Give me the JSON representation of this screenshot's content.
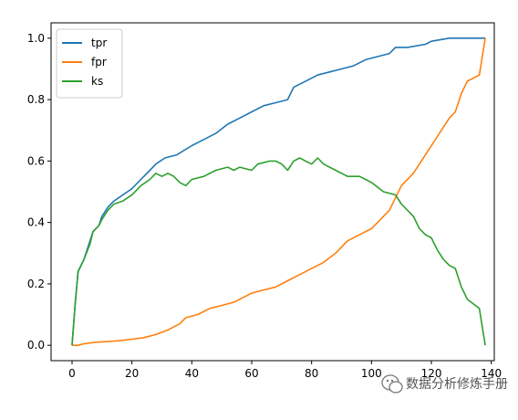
{
  "chart_data": {
    "type": "line",
    "title": "",
    "xlabel": "",
    "ylabel": "",
    "xlim": [
      -7,
      141
    ],
    "ylim": [
      -0.05,
      1.05
    ],
    "xticks": [
      0,
      20,
      40,
      60,
      80,
      100,
      120,
      140
    ],
    "yticks": [
      0.0,
      0.2,
      0.4,
      0.6,
      0.8,
      1.0
    ],
    "xtick_labels": [
      "0",
      "20",
      "40",
      "60",
      "80",
      "100",
      "120",
      "140"
    ],
    "ytick_labels": [
      "0.0",
      "0.2",
      "0.4",
      "0.6",
      "0.8",
      "1.0"
    ],
    "grid": false,
    "legend_position": "top-left",
    "series": [
      {
        "name": "tpr",
        "color": "#1f77b4",
        "points": [
          [
            0,
            0
          ],
          [
            1,
            0.13
          ],
          [
            2,
            0.24
          ],
          [
            4,
            0.28
          ],
          [
            6,
            0.34
          ],
          [
            7,
            0.37
          ],
          [
            9,
            0.39
          ],
          [
            10,
            0.42
          ],
          [
            12,
            0.45
          ],
          [
            14,
            0.47
          ],
          [
            17,
            0.49
          ],
          [
            20,
            0.51
          ],
          [
            23,
            0.54
          ],
          [
            26,
            0.57
          ],
          [
            28,
            0.59
          ],
          [
            31,
            0.61
          ],
          [
            35,
            0.62
          ],
          [
            40,
            0.65
          ],
          [
            44,
            0.67
          ],
          [
            48,
            0.69
          ],
          [
            52,
            0.72
          ],
          [
            56,
            0.74
          ],
          [
            60,
            0.76
          ],
          [
            64,
            0.78
          ],
          [
            68,
            0.79
          ],
          [
            72,
            0.8
          ],
          [
            74,
            0.84
          ],
          [
            78,
            0.86
          ],
          [
            82,
            0.88
          ],
          [
            86,
            0.89
          ],
          [
            90,
            0.9
          ],
          [
            94,
            0.91
          ],
          [
            98,
            0.93
          ],
          [
            102,
            0.94
          ],
          [
            106,
            0.95
          ],
          [
            108,
            0.97
          ],
          [
            112,
            0.97
          ],
          [
            118,
            0.98
          ],
          [
            120,
            0.99
          ],
          [
            126,
            1.0
          ],
          [
            138,
            1.0
          ]
        ]
      },
      {
        "name": "fpr",
        "color": "#ff7f0e",
        "points": [
          [
            0,
            0
          ],
          [
            2,
            0
          ],
          [
            4,
            0.005
          ],
          [
            8,
            0.01
          ],
          [
            12,
            0.012
          ],
          [
            16,
            0.015
          ],
          [
            20,
            0.02
          ],
          [
            24,
            0.025
          ],
          [
            28,
            0.035
          ],
          [
            32,
            0.05
          ],
          [
            36,
            0.07
          ],
          [
            38,
            0.09
          ],
          [
            42,
            0.1
          ],
          [
            46,
            0.12
          ],
          [
            50,
            0.13
          ],
          [
            54,
            0.14
          ],
          [
            58,
            0.16
          ],
          [
            60,
            0.17
          ],
          [
            64,
            0.18
          ],
          [
            68,
            0.19
          ],
          [
            72,
            0.21
          ],
          [
            76,
            0.23
          ],
          [
            80,
            0.25
          ],
          [
            84,
            0.27
          ],
          [
            88,
            0.3
          ],
          [
            92,
            0.34
          ],
          [
            96,
            0.36
          ],
          [
            100,
            0.38
          ],
          [
            104,
            0.42
          ],
          [
            106,
            0.44
          ],
          [
            108,
            0.48
          ],
          [
            110,
            0.52
          ],
          [
            114,
            0.56
          ],
          [
            118,
            0.62
          ],
          [
            122,
            0.68
          ],
          [
            126,
            0.74
          ],
          [
            128,
            0.76
          ],
          [
            130,
            0.82
          ],
          [
            132,
            0.86
          ],
          [
            136,
            0.88
          ],
          [
            138,
            1.0
          ]
        ]
      },
      {
        "name": "ks",
        "color": "#2ca02c",
        "points": [
          [
            0,
            0
          ],
          [
            1,
            0.13
          ],
          [
            2,
            0.24
          ],
          [
            4,
            0.28
          ],
          [
            6,
            0.33
          ],
          [
            7,
            0.37
          ],
          [
            9,
            0.39
          ],
          [
            10,
            0.41
          ],
          [
            12,
            0.44
          ],
          [
            14,
            0.46
          ],
          [
            17,
            0.47
          ],
          [
            20,
            0.49
          ],
          [
            23,
            0.52
          ],
          [
            26,
            0.54
          ],
          [
            28,
            0.56
          ],
          [
            30,
            0.55
          ],
          [
            32,
            0.56
          ],
          [
            34,
            0.55
          ],
          [
            36,
            0.53
          ],
          [
            38,
            0.52
          ],
          [
            40,
            0.54
          ],
          [
            44,
            0.55
          ],
          [
            48,
            0.57
          ],
          [
            52,
            0.58
          ],
          [
            54,
            0.57
          ],
          [
            56,
            0.58
          ],
          [
            60,
            0.57
          ],
          [
            62,
            0.59
          ],
          [
            66,
            0.6
          ],
          [
            68,
            0.6
          ],
          [
            70,
            0.59
          ],
          [
            72,
            0.57
          ],
          [
            74,
            0.6
          ],
          [
            76,
            0.61
          ],
          [
            78,
            0.6
          ],
          [
            80,
            0.59
          ],
          [
            82,
            0.61
          ],
          [
            84,
            0.59
          ],
          [
            88,
            0.57
          ],
          [
            92,
            0.55
          ],
          [
            96,
            0.55
          ],
          [
            98,
            0.54
          ],
          [
            100,
            0.53
          ],
          [
            104,
            0.5
          ],
          [
            108,
            0.49
          ],
          [
            110,
            0.46
          ],
          [
            114,
            0.42
          ],
          [
            116,
            0.38
          ],
          [
            118,
            0.36
          ],
          [
            120,
            0.35
          ],
          [
            122,
            0.31
          ],
          [
            124,
            0.28
          ],
          [
            126,
            0.26
          ],
          [
            128,
            0.25
          ],
          [
            130,
            0.19
          ],
          [
            132,
            0.15
          ],
          [
            136,
            0.12
          ],
          [
            138,
            0.0
          ]
        ]
      }
    ],
    "watermark": "数据分析修炼手册"
  }
}
